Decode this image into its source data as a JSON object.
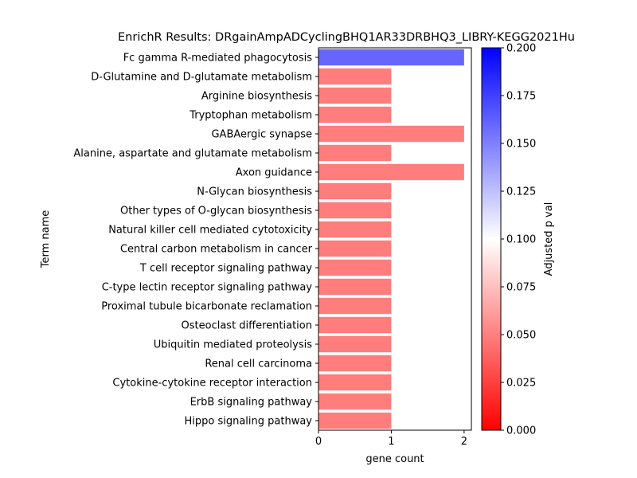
{
  "chart_data": {
    "type": "bar",
    "orientation": "horizontal",
    "title": "EnrichR Results: DRgainAmpADCyclingBHQ1AR33DRBHQ3_LIBRY-KEGG2021Hu",
    "xlabel": "gene count",
    "ylabel": "Term name",
    "xlim": [
      0,
      2.1
    ],
    "xticks": [
      "0",
      "1",
      "2"
    ],
    "grid": false,
    "categories": [
      "Fc gamma R-mediated phagocytosis",
      "D-Glutamine and D-glutamate metabolism",
      "Arginine biosynthesis",
      "Tryptophan metabolism",
      "GABAergic synapse",
      "Alanine, aspartate and glutamate metabolism",
      "Axon guidance",
      "N-Glycan biosynthesis",
      "Other types of O-glycan biosynthesis",
      "Natural killer cell mediated cytotoxicity",
      "Central carbon metabolism in cancer",
      "T cell receptor signaling pathway",
      "C-type lectin receptor signaling pathway",
      "Proximal tubule bicarbonate reclamation",
      "Osteoclast differentiation",
      "Ubiquitin mediated proteolysis",
      "Renal cell carcinoma",
      "Cytokine-cytokine receptor interaction",
      "ErbB signaling pathway",
      "Hippo signaling pathway"
    ],
    "values": [
      2,
      1,
      1,
      1,
      2,
      1,
      2,
      1,
      1,
      1,
      1,
      1,
      1,
      1,
      1,
      1,
      1,
      1,
      1,
      1
    ],
    "adjusted_p": [
      0.16,
      0.049,
      0.049,
      0.049,
      0.049,
      0.049,
      0.049,
      0.049,
      0.049,
      0.049,
      0.049,
      0.049,
      0.049,
      0.049,
      0.049,
      0.049,
      0.049,
      0.049,
      0.049,
      0.049
    ],
    "colorbar": {
      "label": "Adjusted p val",
      "range": [
        0,
        0.2
      ],
      "ticks": [
        "0.000",
        "0.025",
        "0.050",
        "0.075",
        "0.100",
        "0.125",
        "0.150",
        "0.175",
        "0.200"
      ],
      "colors": [
        "#ff0000",
        "#ffffff",
        "#0000ff"
      ]
    }
  }
}
